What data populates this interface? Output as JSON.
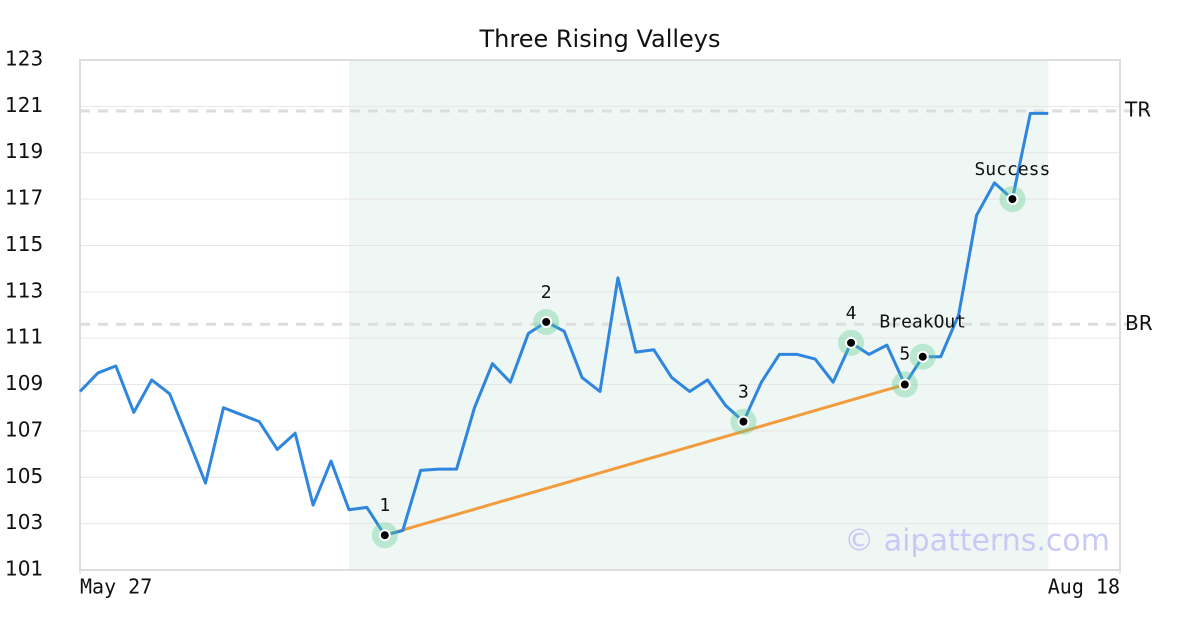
{
  "chart_data": {
    "type": "line",
    "title": "Three Rising Valleys",
    "series": [
      {
        "name": "Price",
        "color": "#2e86de",
        "values": [
          108.7,
          109.5,
          109.8,
          107.8,
          109.2,
          108.6,
          106.7,
          104.75,
          108.0,
          107.7,
          107.4,
          106.2,
          106.9,
          103.8,
          105.7,
          103.6,
          103.7,
          102.5,
          102.7,
          105.3,
          105.35,
          105.35,
          108.0,
          109.9,
          109.1,
          111.2,
          111.7,
          111.3,
          109.3,
          108.7,
          113.6,
          110.4,
          110.5,
          109.3,
          108.7,
          109.2,
          108.1,
          107.4,
          109.1,
          110.3,
          110.3,
          110.1,
          109.1,
          110.8,
          110.3,
          110.7,
          109.0,
          110.2,
          110.2,
          112.0,
          116.3,
          117.7,
          117.0,
          120.7,
          120.7
        ]
      }
    ],
    "xlim": [
      0,
      58
    ],
    "xticks": [
      {
        "value": 0,
        "label": "May 27"
      },
      {
        "value": 58,
        "label": "Aug 18"
      }
    ],
    "ylim": [
      101,
      123
    ],
    "yticks": [
      101,
      103,
      105,
      107,
      109,
      111,
      113,
      115,
      117,
      119,
      121,
      123
    ],
    "grid": true,
    "highlight": {
      "from": 15,
      "to": 54,
      "color": "#eef7f3"
    },
    "levels": [
      {
        "label": "TR",
        "value": 120.8
      },
      {
        "label": "BR",
        "value": 111.6
      }
    ],
    "trendline": {
      "from": 17,
      "to": 46,
      "color": "#f39c3e"
    },
    "points": [
      {
        "label": "1",
        "x": 17
      },
      {
        "label": "2",
        "x": 26
      },
      {
        "label": "3",
        "x": 37
      },
      {
        "label": "4",
        "x": 43
      },
      {
        "label": "5",
        "x": 46
      },
      {
        "label": "BreakOut",
        "x": 47
      },
      {
        "label": "Success",
        "x": 52
      }
    ],
    "watermark": "© aipatterns.com"
  }
}
